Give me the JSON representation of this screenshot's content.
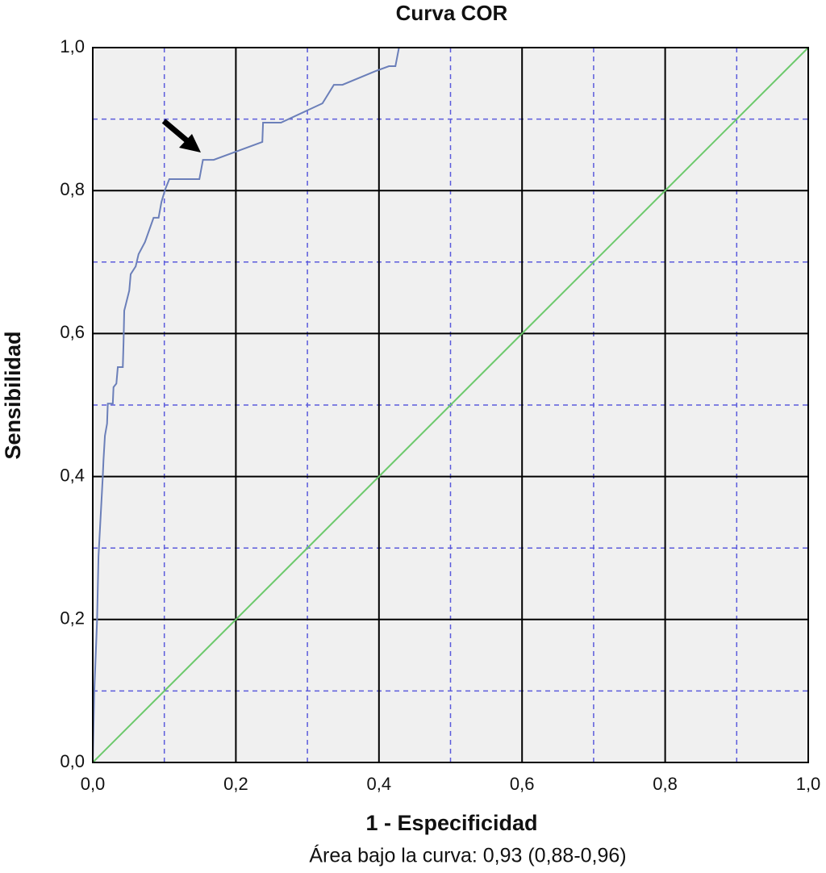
{
  "chart_data": {
    "type": "line",
    "title": "Curva COR",
    "xlabel": "1 - Especificidad",
    "ylabel": "Sensibilidad",
    "annotation": "Área bajo la curva: 0,93 (0,88-0,96)",
    "xlim": [
      0,
      1
    ],
    "ylim": [
      0,
      1
    ],
    "xticks": [
      {
        "value": 0,
        "label": "0,0"
      },
      {
        "value": 0.2,
        "label": "0,2"
      },
      {
        "value": 0.4,
        "label": "0,4"
      },
      {
        "value": 0.6,
        "label": "0,6"
      },
      {
        "value": 0.8,
        "label": "0,8"
      },
      {
        "value": 1,
        "label": "1,0"
      }
    ],
    "yticks": [
      {
        "value": 0,
        "label": "0,0"
      },
      {
        "value": 0.2,
        "label": "0,2"
      },
      {
        "value": 0.4,
        "label": "0,4"
      },
      {
        "value": 0.6,
        "label": "0,6"
      },
      {
        "value": 0.8,
        "label": "0,8"
      },
      {
        "value": 1,
        "label": "1,0"
      }
    ],
    "minor_xticks": [
      0.1,
      0.3,
      0.5,
      0.7,
      0.9
    ],
    "minor_yticks": [
      0.1,
      0.3,
      0.5,
      0.7,
      0.9
    ],
    "grid": true,
    "series": [
      {
        "color": "#6b7fb9",
        "x": [
          0,
          0.002,
          0.006,
          0.008,
          0.011,
          0.014,
          0.015,
          0.017,
          0.02,
          0.021,
          0.028,
          0.029,
          0.033,
          0.035,
          0.042,
          0.043,
          0.044,
          0.051,
          0.053,
          0.06,
          0.064,
          0.073,
          0.085,
          0.092,
          0.096,
          0.101,
          0.107,
          0.149,
          0.154,
          0.169,
          0.237,
          0.238,
          0.263,
          0.321,
          0.337,
          0.349,
          0.395,
          0.414,
          0.423,
          0.428,
          1
        ],
        "values": [
          0,
          0.096,
          0.198,
          0.288,
          0.344,
          0.4,
          0.423,
          0.457,
          0.474,
          0.502,
          0.502,
          0.525,
          0.53,
          0.553,
          0.553,
          0.587,
          0.632,
          0.66,
          0.683,
          0.694,
          0.711,
          0.728,
          0.762,
          0.762,
          0.784,
          0.801,
          0.816,
          0.816,
          0.843,
          0.843,
          0.868,
          0.895,
          0.895,
          0.922,
          0.948,
          0.948,
          0.967,
          0.974,
          0.974,
          1,
          1
        ]
      },
      {
        "color": "#6cc96c",
        "x": [
          0,
          1
        ],
        "values": [
          0,
          1
        ]
      }
    ]
  }
}
